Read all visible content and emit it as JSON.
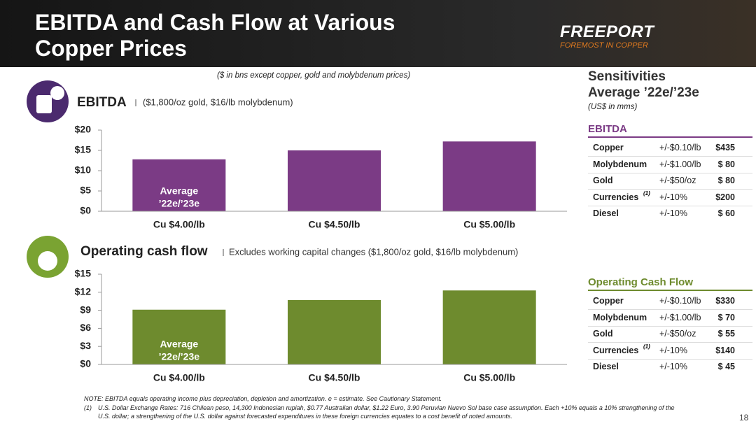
{
  "header": {
    "title": "EBITDA and Cash Flow at Various Copper Prices",
    "logo": "FREEPORT",
    "logo_tagline": "FOREMOST IN COPPER"
  },
  "units_note": "($ in bns except copper, gold and molybdenum prices)",
  "chart_data": [
    {
      "type": "bar",
      "title": "EBITDA",
      "subtitle": "($1,800/oz gold, $16/lb molybdenum)",
      "categories": [
        "Cu $4.00/lb",
        "Cu $4.50/lb",
        "Cu $5.00/lb"
      ],
      "values": [
        12.8,
        15.0,
        17.2
      ],
      "color": "#7b3b85",
      "ylim": [
        0,
        20
      ],
      "yticks": [
        {
          "value": 0,
          "label": "$0"
        },
        {
          "value": 5,
          "label": "$5"
        },
        {
          "value": 10,
          "label": "$10"
        },
        {
          "value": 15,
          "label": "$15"
        },
        {
          "value": 20,
          "label": "$20"
        }
      ],
      "annotation": [
        "Average",
        "’22e/’23e"
      ]
    },
    {
      "type": "bar",
      "title": "Operating cash flow",
      "subtitle": "Excludes working capital changes ($1,800/oz gold, $16/lb molybdenum)",
      "categories": [
        "Cu $4.00/lb",
        "Cu $4.50/lb",
        "Cu $5.00/lb"
      ],
      "values": [
        9.1,
        10.7,
        12.3
      ],
      "color": "#6e8b2e",
      "ylim": [
        0,
        15
      ],
      "yticks": [
        {
          "value": 0,
          "label": "$0"
        },
        {
          "value": 3,
          "label": "$3"
        },
        {
          "value": 6,
          "label": "$6"
        },
        {
          "value": 9,
          "label": "$9"
        },
        {
          "value": 12,
          "label": "$12"
        },
        {
          "value": 15,
          "label": "$15"
        }
      ],
      "annotation": [
        "Average",
        "’22e/’23e"
      ]
    }
  ],
  "sensitivities": {
    "title": "Sensitivities",
    "subtitle": "Average ’22e/’23e",
    "units": "(US$ in mms)",
    "tables": [
      {
        "title": "EBITDA",
        "rows": [
          {
            "name": "Copper",
            "change": "+/-$0.10/lb",
            "value": "$435"
          },
          {
            "name": "Molybdenum",
            "change": "+/-$1.00/lb",
            "value": "$ 80"
          },
          {
            "name": "Gold",
            "change": "+/-$50/oz",
            "value": "$ 80"
          },
          {
            "name": "Currencies",
            "note": "(1)",
            "change": "+/-10%",
            "value": "$200"
          },
          {
            "name": "Diesel",
            "change": "+/-10%",
            "value": "$ 60"
          }
        ]
      },
      {
        "title": "Operating Cash Flow",
        "rows": [
          {
            "name": "Copper",
            "change": "+/-$0.10/lb",
            "value": "$330"
          },
          {
            "name": "Molybdenum",
            "change": "+/-$1.00/lb",
            "value": "$ 70"
          },
          {
            "name": "Gold",
            "change": "+/-$50/oz",
            "value": "$ 55"
          },
          {
            "name": "Currencies",
            "note": "(1)",
            "change": "+/-10%",
            "value": "$140"
          },
          {
            "name": "Diesel",
            "change": "+/-10%",
            "value": "$ 45"
          }
        ]
      }
    ]
  },
  "notes": {
    "note": "NOTE: EBITDA equals operating income plus depreciation, depletion and amortization. e = estimate. See Cautionary Statement.",
    "footnote_marker": "(1)",
    "footnote": "U.S. Dollar Exchange Rates: 716 Chilean peso, 14,300 Indonesian rupiah, $0.77 Australian dollar, $1.22 Euro, 3.90 Peruvian Nuevo Sol base case assumption. Each +10% equals a 10% strengthening of the U.S. dollar; a strengthening of the U.S. dollar against forecasted expenditures in these foreign currencies equates to a cost benefit of noted amounts."
  },
  "page_number": "18"
}
